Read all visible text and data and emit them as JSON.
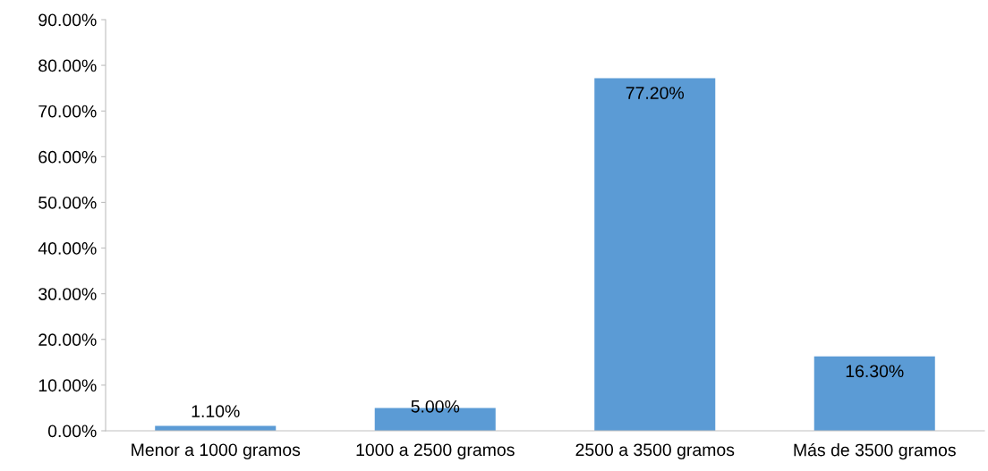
{
  "chart_data": {
    "type": "bar",
    "categories": [
      "Menor a 1000 gramos",
      "1000 a 2500 gramos",
      "2500 a 3500 gramos",
      "Más de 3500 gramos"
    ],
    "values": [
      1.1,
      5.0,
      77.2,
      16.3
    ],
    "value_labels": [
      "1.10%",
      "5.00%",
      "77.20%",
      "16.30%"
    ],
    "color": "#5b9bd5",
    "ylim": [
      0,
      90
    ],
    "yticks": [
      {
        "value": 0,
        "label": "0.00%"
      },
      {
        "value": 10,
        "label": "10.00%"
      },
      {
        "value": 20,
        "label": "20.00%"
      },
      {
        "value": 30,
        "label": "30.00%"
      },
      {
        "value": 40,
        "label": "40.00%"
      },
      {
        "value": 50,
        "label": "50.00%"
      },
      {
        "value": 60,
        "label": "60.00%"
      },
      {
        "value": 70,
        "label": "70.00%"
      },
      {
        "value": 80,
        "label": "80.00%"
      },
      {
        "value": 90,
        "label": "90.00%"
      }
    ],
    "grid": false
  }
}
